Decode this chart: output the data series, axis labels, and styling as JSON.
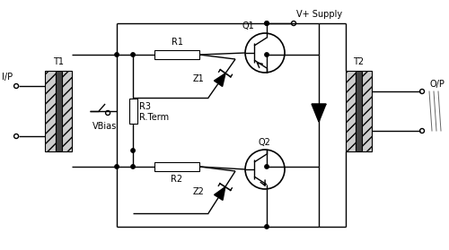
{
  "bg_color": "#ffffff",
  "line_color": "#000000",
  "labels": {
    "IP": "I/P",
    "T1": "T1",
    "VBias": "VBias",
    "R3": "R3",
    "RTerm": "R.Term",
    "R1": "R1",
    "R2": "R2",
    "Z1": "Z1",
    "Z2": "Z2",
    "Q1": "Q1",
    "Q2": "Q2",
    "Vplus": "V+ Supply",
    "T2": "T2",
    "OP": "O/P"
  }
}
